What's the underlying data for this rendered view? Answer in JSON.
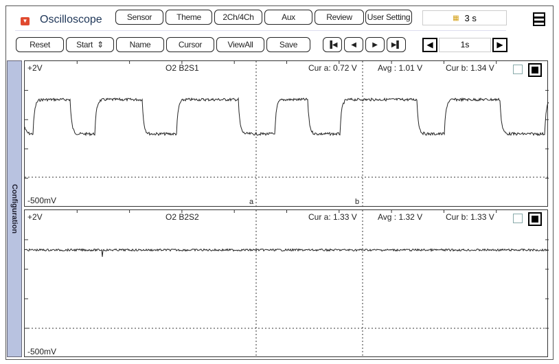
{
  "app": {
    "title": "Oscilloscope",
    "record_time": "3 s",
    "record_icon": "record-icon"
  },
  "toolbar1": [
    "Sensor",
    "Theme",
    "2Ch/4Ch",
    "Aux",
    "Review",
    "User Setting"
  ],
  "toolbar2": {
    "reset": "Reset",
    "start": "Start",
    "name": "Name",
    "cursor": "Cursor",
    "viewall": "ViewAll",
    "save": "Save",
    "timebase": "1s"
  },
  "sidebar": {
    "label": "Configuration"
  },
  "channels": [
    {
      "name": "O2 B2S1",
      "max": "+2V",
      "min": "-500mV",
      "cur_a": "Cur a: 0.72 V",
      "avg": "Avg  : 1.01 V",
      "cur_b": "Cur b: 1.34 V"
    },
    {
      "name": "O2 B2S2",
      "max": "+2V",
      "min": "-500mV",
      "cur_a": "Cur a: 1.33 V",
      "avg": "Avg  : 1.32 V",
      "cur_b": "Cur b: 1.33 V"
    }
  ],
  "cursors": {
    "a": "a",
    "b": "b"
  }
}
